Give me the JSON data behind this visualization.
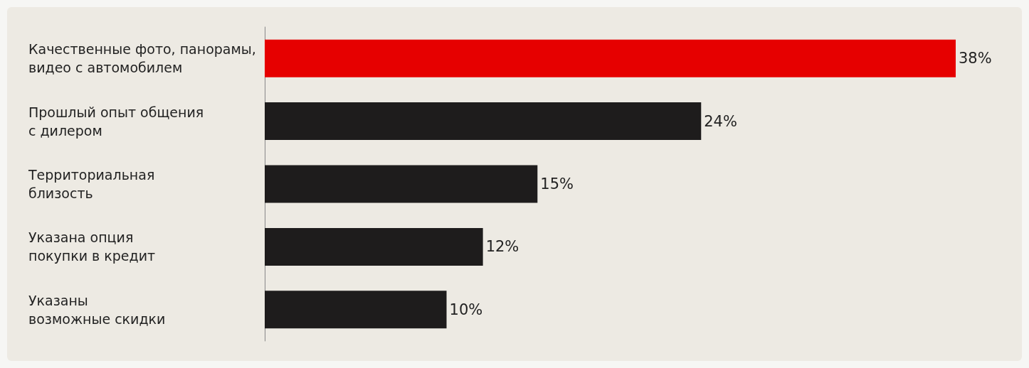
{
  "chart_data": {
    "type": "bar",
    "orientation": "horizontal",
    "categories": [
      "Качественные фото, панорамы,\nвидео с автомобилем",
      "Прошлый опыт общения\nс дилером",
      "Территориальная\nблизость",
      "Указана опция\nпокупки в кредит",
      "Указаны\nвозможные скидки"
    ],
    "values": [
      38,
      24,
      15,
      12,
      10
    ],
    "colors": [
      "#e60000",
      "#1e1c1c",
      "#1e1c1c",
      "#1e1c1c",
      "#1e1c1c"
    ],
    "value_labels": [
      "38%",
      "24%",
      "15%",
      "12%",
      "10%"
    ]
  }
}
